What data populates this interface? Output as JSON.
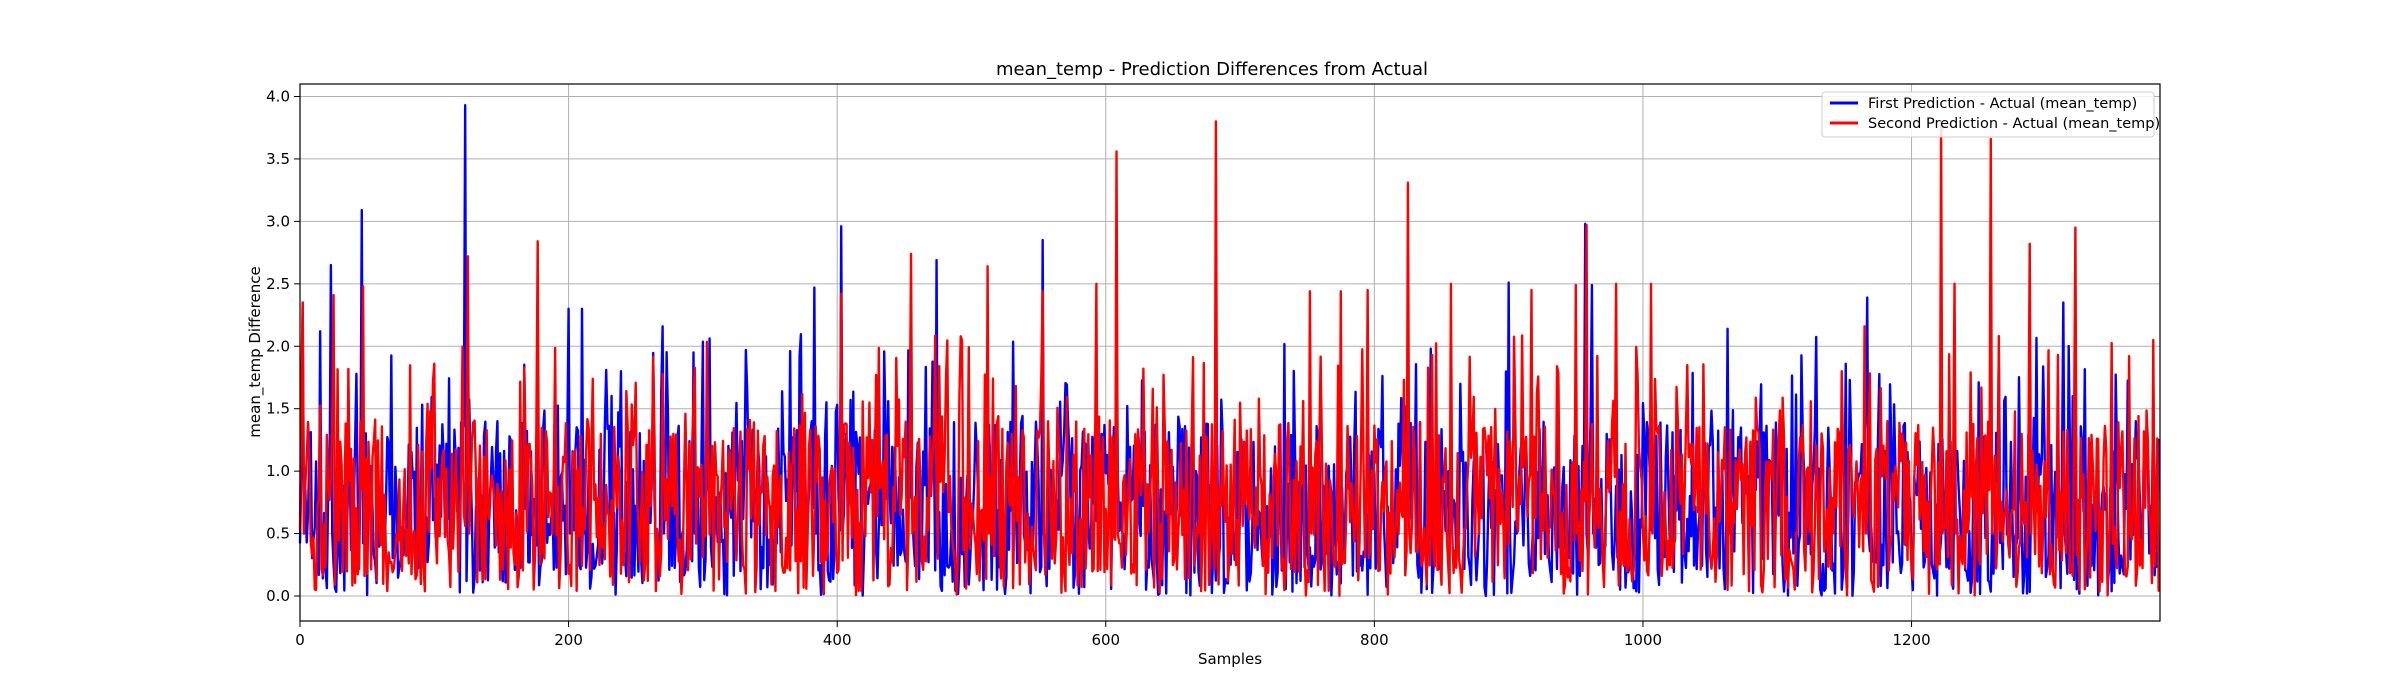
{
  "chart_data": {
    "type": "line",
    "title": "mean_temp - Prediction Differences from Actual",
    "xlabel": "Samples",
    "ylabel": "mean_temp Difference",
    "xlim": [
      0,
      1385
    ],
    "ylim": [
      -0.2,
      4.1
    ],
    "xticks": [
      0,
      200,
      400,
      600,
      800,
      1000,
      1200
    ],
    "yticks": [
      0.0,
      0.5,
      1.0,
      1.5,
      2.0,
      2.5,
      3.0,
      3.5,
      4.0
    ],
    "xtick_labels": [
      "0",
      "200",
      "400",
      "600",
      "800",
      "1000",
      "1200"
    ],
    "ytick_labels": [
      "0.0",
      "0.5",
      "1.0",
      "1.5",
      "2.0",
      "2.5",
      "3.0",
      "3.5",
      "4.0"
    ],
    "grid": true,
    "legend_position": "top-right",
    "num_points": 1385,
    "series": [
      {
        "name": "First Prediction - Actual (mean_temp)",
        "color": "#0000ff",
        "peaks": [
          [
            2,
            2.35
          ],
          [
            15,
            2.12
          ],
          [
            23,
            2.65
          ],
          [
            46,
            3.09
          ],
          [
            123,
            3.93
          ],
          [
            200,
            2.3
          ],
          [
            210,
            2.3
          ],
          [
            239,
            1.8
          ],
          [
            270,
            2.16
          ],
          [
            293,
            1.95
          ],
          [
            383,
            2.47
          ],
          [
            403,
            2.96
          ],
          [
            474,
            2.69
          ],
          [
            553,
            2.85
          ],
          [
            900,
            2.51
          ],
          [
            957,
            2.98
          ],
          [
            962,
            2.49
          ],
          [
            1063,
            2.14
          ],
          [
            1167,
            2.39
          ],
          [
            1313,
            2.35
          ],
          [
            1320,
            1.6
          ]
        ]
      },
      {
        "name": "Second Prediction - Actual (mean_temp)",
        "color": "#ff0000",
        "peaks": [
          [
            2,
            2.35
          ],
          [
            25,
            2.41
          ],
          [
            47,
            2.48
          ],
          [
            100,
            1.86
          ],
          [
            125,
            2.72
          ],
          [
            177,
            2.84
          ],
          [
            403,
            2.42
          ],
          [
            455,
            2.74
          ],
          [
            512,
            2.64
          ],
          [
            553,
            2.44
          ],
          [
            593,
            2.5
          ],
          [
            608,
            3.56
          ],
          [
            682,
            3.8
          ],
          [
            752,
            2.44
          ],
          [
            775,
            2.44
          ],
          [
            795,
            2.45
          ],
          [
            825,
            3.31
          ],
          [
            857,
            2.5
          ],
          [
            917,
            2.45
          ],
          [
            950,
            2.49
          ],
          [
            958,
            2.97
          ],
          [
            980,
            2.5
          ],
          [
            1006,
            2.5
          ],
          [
            1165,
            2.16
          ],
          [
            1222,
            3.8
          ],
          [
            1232,
            2.5
          ],
          [
            1259,
            3.66
          ],
          [
            1288,
            2.82
          ],
          [
            1322,
            2.95
          ],
          [
            1362,
            1.92
          ],
          [
            1380,
            2.05
          ]
        ]
      }
    ]
  }
}
